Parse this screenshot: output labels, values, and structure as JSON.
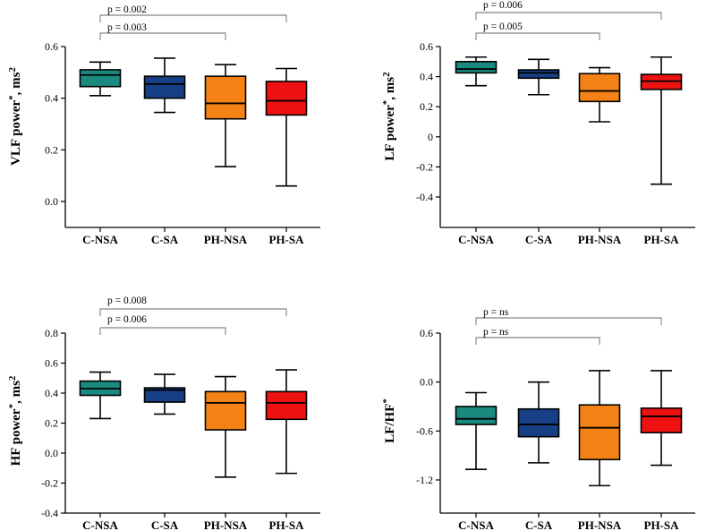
{
  "categories": [
    "C-NSA",
    "C-SA",
    "PH-NSA",
    "PH-SA"
  ],
  "colors": {
    "C-NSA": "#1a8a7e",
    "C-SA": "#163f86",
    "PH-NSA": "#f58214",
    "PH-SA": "#ee1111"
  },
  "chart_data": [
    {
      "type": "box",
      "ylabel": "VLF power*, ms²",
      "ylabel_main": "VLF power",
      "ylabel_unit": ", ms",
      "ylim": [
        0.0,
        0.6
      ],
      "yticks": [
        "0.0",
        "0.2",
        "0.4",
        "0.6"
      ],
      "categories": [
        "C-NSA",
        "C-SA",
        "PH-NSA",
        "PH-SA"
      ],
      "boxes": [
        {
          "min": 0.41,
          "q1": 0.445,
          "median": 0.49,
          "q3": 0.51,
          "max": 0.54
        },
        {
          "min": 0.345,
          "q1": 0.4,
          "median": 0.455,
          "q3": 0.485,
          "max": 0.555
        },
        {
          "min": 0.135,
          "q1": 0.32,
          "median": 0.38,
          "q3": 0.485,
          "max": 0.53
        },
        {
          "min": 0.06,
          "q1": 0.335,
          "median": 0.39,
          "q3": 0.465,
          "max": 0.515
        }
      ],
      "annotations": [
        {
          "text": "p = 0.002",
          "from": "C-NSA",
          "to": "PH-SA"
        },
        {
          "text": "p = 0.003",
          "from": "C-NSA",
          "to": "PH-NSA"
        }
      ]
    },
    {
      "type": "box",
      "ylabel": "LF power*, ms²",
      "ylabel_main": "LF power",
      "ylabel_unit": ", ms",
      "ylim": [
        -0.4,
        0.6
      ],
      "yticks": [
        "-0.4",
        "-0.2",
        "0",
        "0.2",
        "0.4",
        "0.6"
      ],
      "categories": [
        "C-NSA",
        "C-SA",
        "PH-NSA",
        "PH-SA"
      ],
      "boxes": [
        {
          "min": 0.34,
          "q1": 0.425,
          "median": 0.45,
          "q3": 0.5,
          "max": 0.53
        },
        {
          "min": 0.28,
          "q1": 0.39,
          "median": 0.425,
          "q3": 0.445,
          "max": 0.515
        },
        {
          "min": 0.1,
          "q1": 0.235,
          "median": 0.305,
          "q3": 0.42,
          "max": 0.46
        },
        {
          "min": -0.315,
          "q1": 0.315,
          "median": 0.37,
          "q3": 0.415,
          "max": 0.53
        }
      ],
      "annotations": [
        {
          "text": "p = 0.006",
          "from": "C-NSA",
          "to": "PH-SA"
        },
        {
          "text": "p = 0.005",
          "from": "C-NSA",
          "to": "PH-NSA"
        }
      ]
    },
    {
      "type": "box",
      "ylabel": "HF power*, ms²",
      "ylabel_main": "HF power",
      "ylabel_unit": ", ms",
      "ylim": [
        -0.4,
        0.8
      ],
      "yticks": [
        "-0.4",
        "-0.2",
        "0.0",
        "0.2",
        "0.4",
        "0.6",
        "0.8"
      ],
      "categories": [
        "C-NSA",
        "C-SA",
        "PH-NSA",
        "PH-SA"
      ],
      "boxes": [
        {
          "min": 0.23,
          "q1": 0.385,
          "median": 0.43,
          "q3": 0.48,
          "max": 0.54
        },
        {
          "min": 0.26,
          "q1": 0.34,
          "median": 0.42,
          "q3": 0.435,
          "max": 0.525
        },
        {
          "min": -0.16,
          "q1": 0.155,
          "median": 0.335,
          "q3": 0.41,
          "max": 0.51
        },
        {
          "min": -0.135,
          "q1": 0.225,
          "median": 0.335,
          "q3": 0.41,
          "max": 0.555
        }
      ],
      "annotations": [
        {
          "text": "p = 0.008",
          "from": "C-NSA",
          "to": "PH-SA"
        },
        {
          "text": "p = 0.006",
          "from": "C-NSA",
          "to": "PH-NSA"
        }
      ]
    },
    {
      "type": "box",
      "ylabel": "LF/HF*",
      "ylabel_main": "LF/HF",
      "ylabel_unit": "",
      "ylim": [
        -1.5,
        0.75
      ],
      "yticks": [
        "-1.2",
        "-0.6",
        "0.0",
        "0.6"
      ],
      "ytick_values": [
        -1.2,
        -0.6,
        0.0,
        0.6
      ],
      "categories": [
        "C-NSA",
        "C-SA",
        "PH-NSA",
        "PH-SA"
      ],
      "boxes": [
        {
          "min": -1.07,
          "q1": -0.52,
          "median": -0.45,
          "q3": -0.3,
          "max": -0.13
        },
        {
          "min": -0.99,
          "q1": -0.67,
          "median": -0.52,
          "q3": -0.33,
          "max": 0.0
        },
        {
          "min": -1.27,
          "q1": -0.95,
          "median": -0.56,
          "q3": -0.28,
          "max": 0.14
        },
        {
          "min": -1.02,
          "q1": -0.62,
          "median": -0.42,
          "q3": -0.32,
          "max": 0.14
        }
      ],
      "annotations": [
        {
          "text": "p = ns",
          "from": "C-NSA",
          "to": "PH-SA"
        },
        {
          "text": "p = ns",
          "from": "C-NSA",
          "to": "PH-NSA"
        }
      ]
    }
  ]
}
